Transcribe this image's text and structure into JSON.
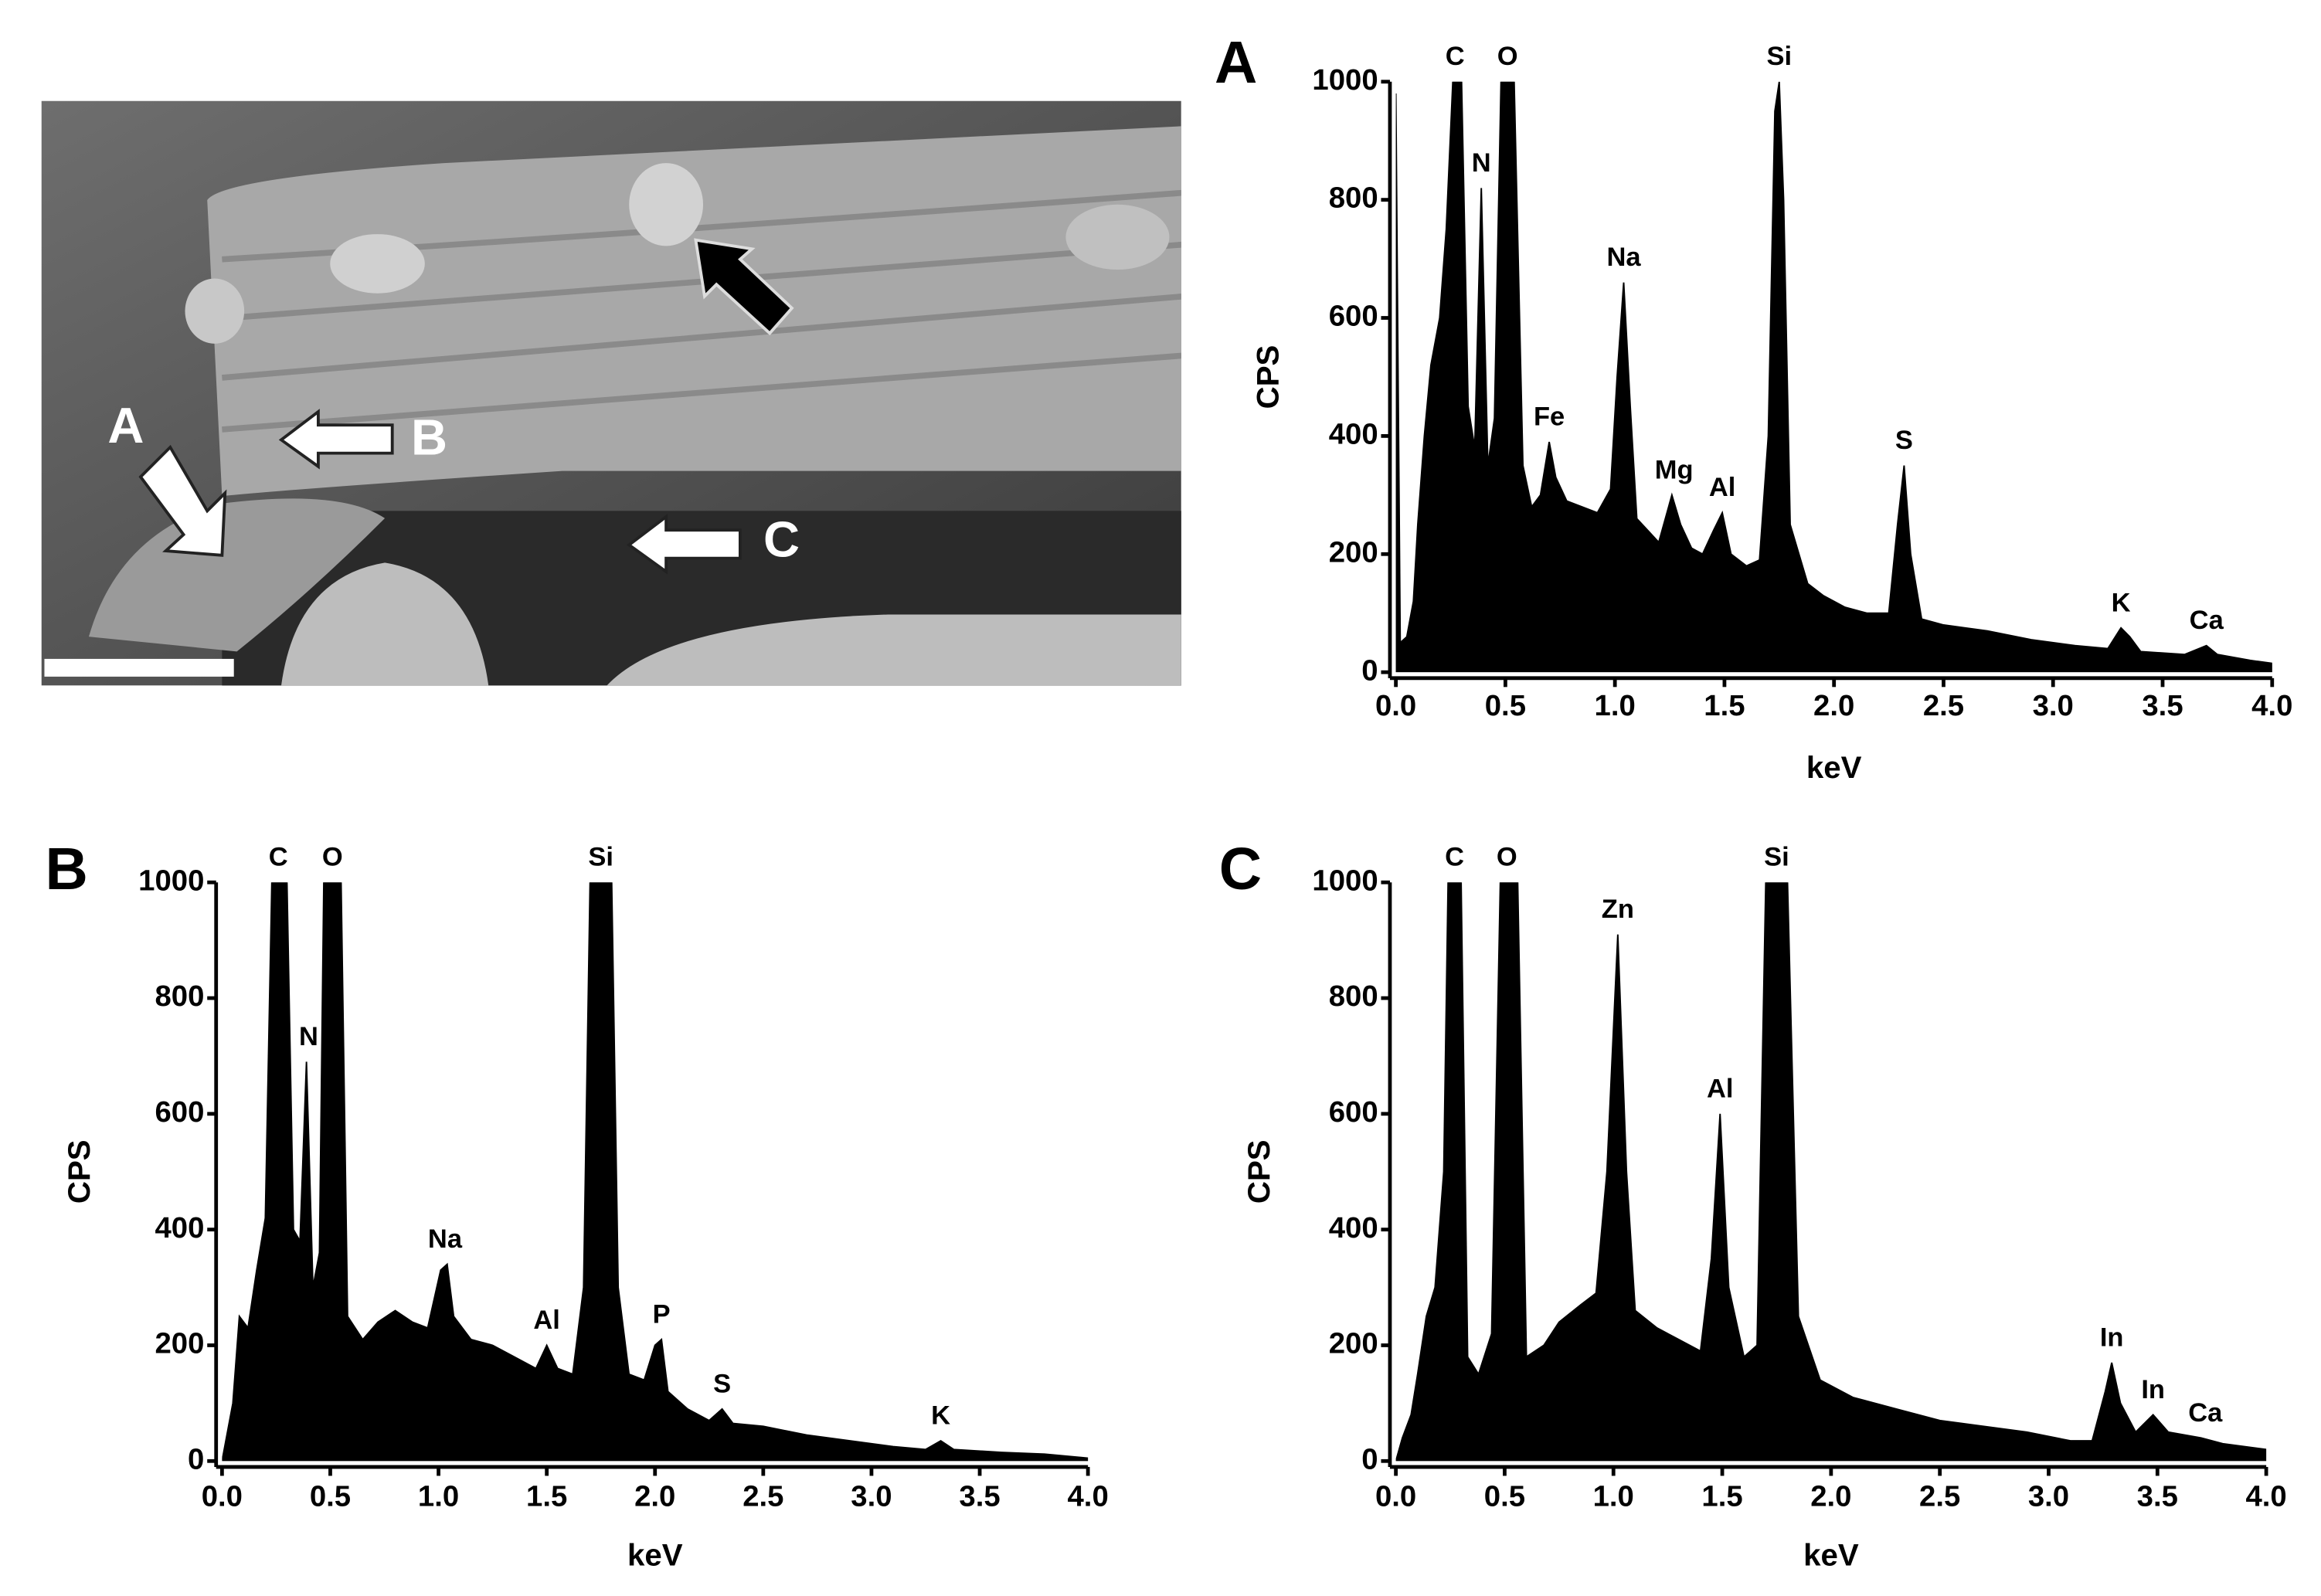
{
  "image_panel": {
    "labels": [
      "A",
      "B",
      "C"
    ]
  },
  "chart_data": [
    {
      "type": "area",
      "panel_label": "A",
      "xlabel": "keV",
      "ylabel": "CPS",
      "color": "#000000",
      "xlim": [
        0,
        4
      ],
      "ylim": [
        0,
        1000
      ],
      "xticks": [
        {
          "value": 0,
          "label": "0.0"
        },
        0.5,
        {
          "value": 1,
          "label": "1.0"
        },
        1.5,
        {
          "value": 2,
          "label": "2.0"
        },
        2.5,
        {
          "value": 3,
          "label": "3.0"
        },
        3.5,
        {
          "value": 4,
          "label": "4.0"
        }
      ],
      "yticks": [
        0,
        200,
        400,
        600,
        800,
        1000
      ],
      "x": [
        0,
        0.02,
        0.05,
        0.08,
        0.1,
        0.13,
        0.16,
        0.2,
        0.23,
        0.26,
        0.3,
        0.33,
        0.36,
        0.39,
        0.42,
        0.45,
        0.48,
        0.54,
        0.58,
        0.62,
        0.66,
        0.7,
        0.73,
        0.78,
        0.85,
        0.92,
        0.98,
        1.01,
        1.04,
        1.07,
        1.1,
        1.15,
        1.2,
        1.26,
        1.3,
        1.35,
        1.4,
        1.45,
        1.49,
        1.53,
        1.6,
        1.66,
        1.7,
        1.73,
        1.75,
        1.77,
        1.8,
        1.88,
        1.95,
        2.05,
        2.15,
        2.25,
        2.29,
        2.32,
        2.35,
        2.4,
        2.5,
        2.7,
        2.9,
        3.1,
        3.25,
        3.31,
        3.35,
        3.4,
        3.6,
        3.7,
        3.75,
        3.9,
        4
      ],
      "values": [
        980,
        50,
        60,
        120,
        250,
        400,
        520,
        600,
        750,
        1000,
        1000,
        450,
        380,
        820,
        350,
        430,
        1000,
        1000,
        350,
        280,
        300,
        390,
        330,
        290,
        280,
        270,
        310,
        500,
        660,
        450,
        260,
        240,
        220,
        300,
        250,
        210,
        200,
        240,
        270,
        200,
        180,
        190,
        400,
        950,
        1000,
        800,
        250,
        150,
        130,
        110,
        100,
        100,
        250,
        350,
        200,
        90,
        80,
        70,
        55,
        45,
        40,
        75,
        60,
        35,
        30,
        45,
        30,
        20,
        15
      ],
      "annotations": [
        {
          "text": "C",
          "x": 0.27,
          "y": 1000
        },
        {
          "text": "O",
          "x": 0.51,
          "y": 1000
        },
        {
          "text": "N",
          "x": 0.39,
          "y": 820
        },
        {
          "text": "Na",
          "x": 1.04,
          "y": 660
        },
        {
          "text": "Fe",
          "x": 0.7,
          "y": 390
        },
        {
          "text": "Mg",
          "x": 1.27,
          "y": 300
        },
        {
          "text": "Al",
          "x": 1.49,
          "y": 270
        },
        {
          "text": "Si",
          "x": 1.75,
          "y": 1000
        },
        {
          "text": "S",
          "x": 2.32,
          "y": 350
        },
        {
          "text": "K",
          "x": 3.31,
          "y": 75
        },
        {
          "text": "Ca",
          "x": 3.7,
          "y": 45
        }
      ]
    },
    {
      "type": "area",
      "panel_label": "B",
      "xlabel": "keV",
      "ylabel": "CPS",
      "color": "#000000",
      "xlim": [
        0,
        4
      ],
      "ylim": [
        0,
        1000
      ],
      "xticks": [
        {
          "value": 0,
          "label": "0.0"
        },
        0.5,
        {
          "value": 1,
          "label": "1.0"
        },
        1.5,
        {
          "value": 2,
          "label": "2.0"
        },
        2.5,
        {
          "value": 3,
          "label": "3.0"
        },
        3.5,
        {
          "value": 4,
          "label": "4.0"
        }
      ],
      "yticks": [
        0,
        200,
        400,
        600,
        800,
        1000
      ],
      "x": [
        0,
        0.02,
        0.05,
        0.08,
        0.12,
        0.16,
        0.2,
        0.23,
        0.3,
        0.33,
        0.36,
        0.39,
        0.42,
        0.45,
        0.47,
        0.55,
        0.58,
        0.65,
        0.72,
        0.8,
        0.88,
        0.95,
        1.01,
        1.04,
        1.07,
        1.15,
        1.25,
        1.35,
        1.45,
        1.5,
        1.55,
        1.62,
        1.67,
        1.7,
        1.8,
        1.83,
        1.88,
        1.95,
        2,
        2.03,
        2.06,
        2.15,
        2.25,
        2.31,
        2.36,
        2.5,
        2.7,
        2.9,
        3.1,
        3.25,
        3.32,
        3.38,
        3.6,
        3.8,
        4
      ],
      "values": [
        0,
        40,
        100,
        250,
        230,
        330,
        420,
        1000,
        1000,
        400,
        380,
        690,
        300,
        360,
        1000,
        1000,
        250,
        210,
        240,
        260,
        240,
        230,
        330,
        340,
        250,
        210,
        200,
        180,
        160,
        200,
        160,
        150,
        300,
        1000,
        1000,
        300,
        150,
        140,
        200,
        210,
        120,
        90,
        70,
        90,
        65,
        60,
        45,
        35,
        25,
        20,
        35,
        20,
        15,
        12,
        5
      ],
      "annotations": [
        {
          "text": "C",
          "x": 0.26,
          "y": 1000
        },
        {
          "text": "O",
          "x": 0.51,
          "y": 1000
        },
        {
          "text": "N",
          "x": 0.4,
          "y": 690
        },
        {
          "text": "Na",
          "x": 1.03,
          "y": 340
        },
        {
          "text": "Al",
          "x": 1.5,
          "y": 200
        },
        {
          "text": "Si",
          "x": 1.75,
          "y": 1000
        },
        {
          "text": "P",
          "x": 2.03,
          "y": 210
        },
        {
          "text": "S",
          "x": 2.31,
          "y": 90
        },
        {
          "text": "K",
          "x": 3.32,
          "y": 35
        }
      ]
    },
    {
      "type": "area",
      "panel_label": "C",
      "xlabel": "keV",
      "ylabel": "CPS",
      "color": "#000000",
      "xlim": [
        0,
        4
      ],
      "ylim": [
        0,
        1000
      ],
      "xticks": [
        {
          "value": 0,
          "label": "0.0"
        },
        0.5,
        {
          "value": 1,
          "label": "1.0"
        },
        1.5,
        {
          "value": 2,
          "label": "2.0"
        },
        2.5,
        {
          "value": 3,
          "label": "3.0"
        },
        3.5,
        {
          "value": 4,
          "label": "4.0"
        }
      ],
      "yticks": [
        0,
        200,
        400,
        600,
        800,
        1000
      ],
      "x": [
        0,
        0.03,
        0.07,
        0.1,
        0.14,
        0.18,
        0.22,
        0.24,
        0.3,
        0.33,
        0.38,
        0.44,
        0.48,
        0.56,
        0.6,
        0.68,
        0.75,
        0.85,
        0.92,
        0.97,
        1.02,
        1.06,
        1.1,
        1.2,
        1.3,
        1.4,
        1.45,
        1.49,
        1.53,
        1.6,
        1.66,
        1.7,
        1.8,
        1.85,
        1.95,
        2.1,
        2.3,
        2.5,
        2.7,
        2.9,
        3.1,
        3.2,
        3.26,
        3.29,
        3.33,
        3.4,
        3.48,
        3.55,
        3.7,
        3.8,
        4
      ],
      "values": [
        0,
        40,
        80,
        150,
        250,
        300,
        500,
        1000,
        1000,
        180,
        150,
        220,
        1000,
        1000,
        180,
        200,
        240,
        270,
        290,
        500,
        910,
        500,
        260,
        230,
        210,
        190,
        350,
        600,
        300,
        180,
        200,
        1000,
        1000,
        250,
        140,
        110,
        90,
        70,
        60,
        50,
        35,
        35,
        120,
        170,
        100,
        50,
        80,
        50,
        40,
        30,
        20
      ],
      "annotations": [
        {
          "text": "C",
          "x": 0.27,
          "y": 1000
        },
        {
          "text": "O",
          "x": 0.51,
          "y": 1000
        },
        {
          "text": "Zn",
          "x": 1.02,
          "y": 910
        },
        {
          "text": "Al",
          "x": 1.49,
          "y": 600
        },
        {
          "text": "Si",
          "x": 1.75,
          "y": 1000
        },
        {
          "text": "In",
          "x": 3.29,
          "y": 170
        },
        {
          "text": "In",
          "x": 3.48,
          "y": 80
        },
        {
          "text": "Ca",
          "x": 3.72,
          "y": 40
        }
      ]
    }
  ]
}
